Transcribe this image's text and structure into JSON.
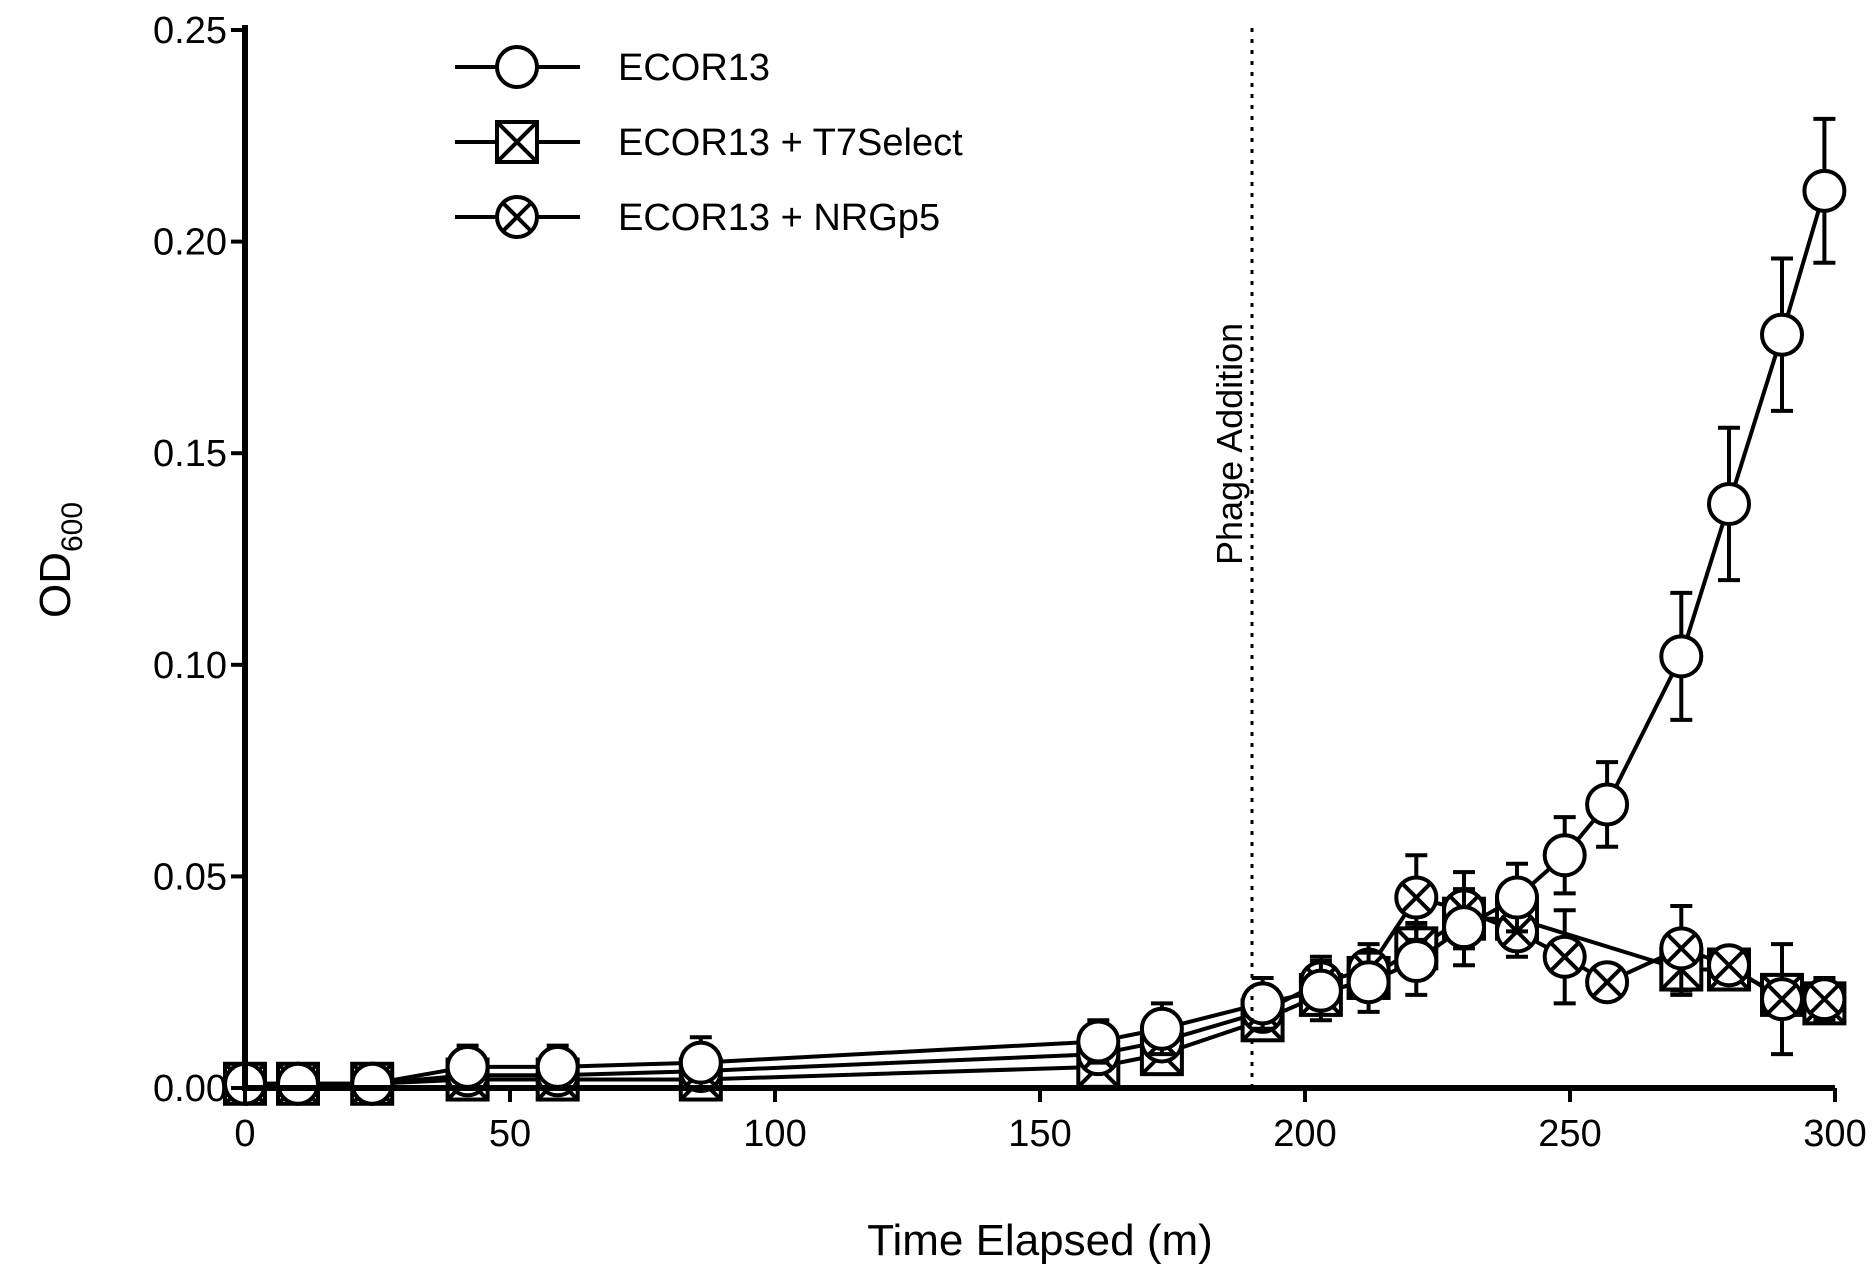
{
  "chart_data": {
    "type": "line",
    "title": "",
    "xlabel": "Time Elapsed (m)",
    "ylabel_main": "OD",
    "ylabel_sub": "600",
    "xlim": [
      0,
      300
    ],
    "ylim": [
      0,
      0.25
    ],
    "xticks": [
      "0",
      "50",
      "100",
      "150",
      "200",
      "250",
      "300"
    ],
    "yticks": [
      "0.00",
      "0.05",
      "0.10",
      "0.15",
      "0.20",
      "0.25"
    ],
    "grid": false,
    "legend_position": "top-left",
    "annotation": {
      "label": "Phage Addition",
      "x": 190,
      "style": "dotted vertical line"
    },
    "series": [
      {
        "name": "ECOR13 + T7Select",
        "marker": "square-x",
        "x": [
          0,
          10,
          24,
          42,
          59,
          86,
          161,
          173,
          192,
          203,
          212,
          221,
          230,
          240,
          271,
          280,
          290,
          298
        ],
        "y": [
          0.001,
          0.001,
          0.001,
          0.002,
          0.002,
          0.002,
          0.005,
          0.008,
          0.016,
          0.022,
          0.026,
          0.033,
          0.04,
          0.04,
          0.028,
          0.028,
          0.022,
          0.02
        ],
        "err": [
          0,
          0,
          0,
          0,
          0,
          0,
          0.002,
          0.003,
          0.003,
          0.004,
          0.005,
          0.006,
          0.006,
          0.005,
          0.006,
          0.004,
          0.004,
          0.004
        ]
      },
      {
        "name": "ECOR13 + NRGp5",
        "marker": "circle-x",
        "x": [
          0,
          10,
          24,
          42,
          59,
          86,
          161,
          173,
          192,
          203,
          212,
          221,
          230,
          240,
          249,
          257,
          271,
          280,
          290,
          298
        ],
        "y": [
          0.001,
          0.001,
          0.001,
          0.003,
          0.003,
          0.004,
          0.008,
          0.011,
          0.018,
          0.025,
          0.028,
          0.045,
          0.042,
          0.037,
          0.031,
          0.025,
          0.033,
          0.029,
          0.021,
          0.021
        ],
        "err": [
          0,
          0,
          0,
          0.001,
          0.001,
          0.001,
          0.003,
          0.004,
          0.004,
          0.006,
          0.006,
          0.01,
          0.009,
          0.006,
          0.011,
          0.003,
          0.01,
          0.004,
          0.013,
          0.005
        ]
      },
      {
        "name": "ECOR13",
        "marker": "circle",
        "x": [
          0,
          10,
          24,
          42,
          59,
          86,
          161,
          173,
          192,
          203,
          212,
          221,
          230,
          240,
          249,
          257,
          271,
          280,
          290,
          298
        ],
        "y": [
          0.001,
          0.001,
          0.001,
          0.005,
          0.005,
          0.006,
          0.011,
          0.014,
          0.02,
          0.023,
          0.025,
          0.03,
          0.038,
          0.045,
          0.055,
          0.067,
          0.102,
          0.138,
          0.178,
          0.212
        ],
        "err": [
          0,
          0,
          0,
          0.005,
          0.005,
          0.006,
          0.005,
          0.006,
          0.006,
          0.007,
          0.007,
          0.008,
          0.009,
          0.008,
          0.009,
          0.01,
          0.015,
          0.018,
          0.018,
          0.017
        ]
      }
    ]
  }
}
